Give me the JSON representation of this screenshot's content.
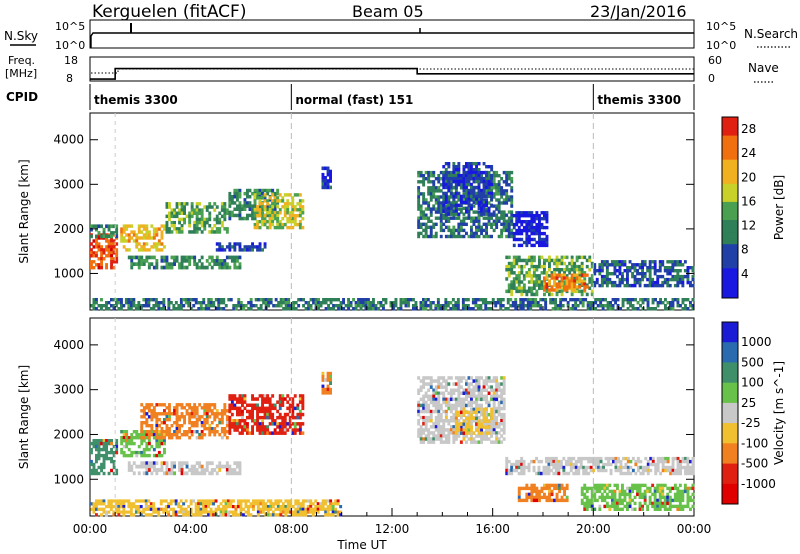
{
  "header": {
    "station": "Kerguelen (fitACF)",
    "beam": "Beam 05",
    "date": "23/Jan/2016"
  },
  "status_panels": {
    "nsky_label": "N.Sky",
    "nsky_ticks": [
      "10^5",
      "10^0"
    ],
    "nsearch_label": "N.Search",
    "nsearch_ticks": [
      "10^5",
      "10^0"
    ],
    "freq_label": [
      "Freq.",
      "[MHz]"
    ],
    "freq_ticks": [
      "18",
      "8"
    ],
    "nave_label": "Nave",
    "nave_ticks": [
      "60",
      "0"
    ],
    "cpid_label": "CPID",
    "cpid_segments": [
      {
        "label": "themis 3300",
        "start_h": 0,
        "end_h": 8
      },
      {
        "label": "normal (fast) 151",
        "start_h": 8,
        "end_h": 20
      },
      {
        "label": "themis 3300",
        "start_h": 20,
        "end_h": 24
      }
    ],
    "freq_series_mhz": [
      {
        "start_h": 0,
        "end_h": 1.0,
        "value": 8.8
      },
      {
        "start_h": 1.0,
        "end_h": 13.0,
        "value": 13.2
      },
      {
        "start_h": 13.0,
        "end_h": 24,
        "value": 11.0
      }
    ]
  },
  "chart_data": [
    {
      "type": "heatmap",
      "name": "power",
      "ylabel": "Slant Range [km]",
      "xlabel": "",
      "x_ticks": [
        "00:00",
        "04:00",
        "08:00",
        "12:00",
        "16:00",
        "20:00",
        "00:00"
      ],
      "y_ticks": [
        "1000",
        "2000",
        "3000",
        "4000"
      ],
      "ylim": [
        180,
        4600
      ],
      "xlim_hours": [
        0,
        24
      ],
      "colorbar_label": "Power [dB]",
      "colorbar_ticks": [
        "4",
        "8",
        "12",
        "16",
        "20",
        "24",
        "28"
      ],
      "colorbar_range": [
        0,
        30
      ],
      "regions": [
        {
          "t0": 0.0,
          "t1": 1.1,
          "r0": 1100,
          "r1": 1900,
          "v": 27
        },
        {
          "t0": 0.0,
          "t1": 1.1,
          "r0": 1800,
          "r1": 2100,
          "v": 12
        },
        {
          "t0": 1.2,
          "t1": 3.0,
          "r0": 1500,
          "r1": 2100,
          "v": 20
        },
        {
          "t0": 1.5,
          "t1": 6.0,
          "r0": 1100,
          "r1": 1400,
          "v": 12
        },
        {
          "t0": 3.0,
          "t1": 5.5,
          "r0": 1900,
          "r1": 2600,
          "v": 14
        },
        {
          "t0": 5.5,
          "t1": 7.5,
          "r0": 2200,
          "r1": 2900,
          "v": 12
        },
        {
          "t0": 6.5,
          "t1": 8.5,
          "r0": 2000,
          "r1": 2800,
          "v": 18
        },
        {
          "t0": 5.0,
          "t1": 7.0,
          "r0": 1500,
          "r1": 1700,
          "v": 6
        },
        {
          "t0": 9.2,
          "t1": 9.6,
          "r0": 2900,
          "r1": 3400,
          "v": 6
        },
        {
          "t0": 13.0,
          "t1": 16.8,
          "r0": 1800,
          "r1": 3300,
          "v": 10
        },
        {
          "t0": 14.0,
          "t1": 16.0,
          "r0": 2300,
          "r1": 3500,
          "v": 6
        },
        {
          "t0": 16.8,
          "t1": 18.2,
          "r0": 1600,
          "r1": 2400,
          "v": 4
        },
        {
          "t0": 16.5,
          "t1": 20.0,
          "r0": 500,
          "r1": 1400,
          "v": 14
        },
        {
          "t0": 18.0,
          "t1": 19.8,
          "r0": 600,
          "r1": 1000,
          "v": 24
        },
        {
          "t0": 20.0,
          "t1": 24.0,
          "r0": 700,
          "r1": 1300,
          "v": 8
        },
        {
          "t0": 0.0,
          "t1": 24.0,
          "r0": 180,
          "r1": 450,
          "v": 10
        }
      ]
    },
    {
      "type": "heatmap",
      "name": "velocity",
      "ylabel": "Slant Range [km]",
      "xlabel": "Time UT",
      "x_ticks": [
        "00:00",
        "04:00",
        "08:00",
        "12:00",
        "16:00",
        "20:00",
        "00:00"
      ],
      "y_ticks": [
        "1000",
        "2000",
        "3000",
        "4000"
      ],
      "ylim": [
        180,
        4600
      ],
      "xlim_hours": [
        0,
        24
      ],
      "colorbar_label": "Velocity [m s^-1]",
      "colorbar_ticks": [
        "1000",
        "500",
        "100",
        "25",
        "-25",
        "-100",
        "-500",
        "-1000"
      ],
      "colorbar_colors": [
        "#1b1bd6",
        "#2a6bb0",
        "#3f8f6a",
        "#68c24a",
        "#c8c8c8",
        "#f0c030",
        "#f08020",
        "#e02010",
        "#e00000"
      ],
      "regions": [
        {
          "t0": 0.0,
          "t1": 1.1,
          "r0": 1100,
          "r1": 1900,
          "v": "#3f8f6a"
        },
        {
          "t0": 1.2,
          "t1": 3.0,
          "r0": 1500,
          "r1": 2100,
          "v": "#68c24a"
        },
        {
          "t0": 2.0,
          "t1": 5.5,
          "r0": 1900,
          "r1": 2700,
          "v": "#f08020"
        },
        {
          "t0": 5.5,
          "t1": 8.5,
          "r0": 2000,
          "r1": 2900,
          "v": "#e02010"
        },
        {
          "t0": 1.5,
          "t1": 6.0,
          "r0": 1100,
          "r1": 1400,
          "v": "#c8c8c8"
        },
        {
          "t0": 9.2,
          "t1": 9.6,
          "r0": 2900,
          "r1": 3400,
          "v": "#f08020"
        },
        {
          "t0": 13.0,
          "t1": 16.5,
          "r0": 1800,
          "r1": 3300,
          "v": "#c8c8c8"
        },
        {
          "t0": 14.5,
          "t1": 16.0,
          "r0": 2000,
          "r1": 2600,
          "v": "#f0c030"
        },
        {
          "t0": 16.5,
          "t1": 24.0,
          "r0": 1100,
          "r1": 1500,
          "v": "#c8c8c8"
        },
        {
          "t0": 17.0,
          "t1": 19.0,
          "r0": 500,
          "r1": 900,
          "v": "#f08020"
        },
        {
          "t0": 19.5,
          "t1": 24.0,
          "r0": 300,
          "r1": 900,
          "v": "#68c24a"
        },
        {
          "t0": 0.0,
          "t1": 10.0,
          "r0": 180,
          "r1": 550,
          "v": "#f0c030"
        }
      ]
    }
  ]
}
